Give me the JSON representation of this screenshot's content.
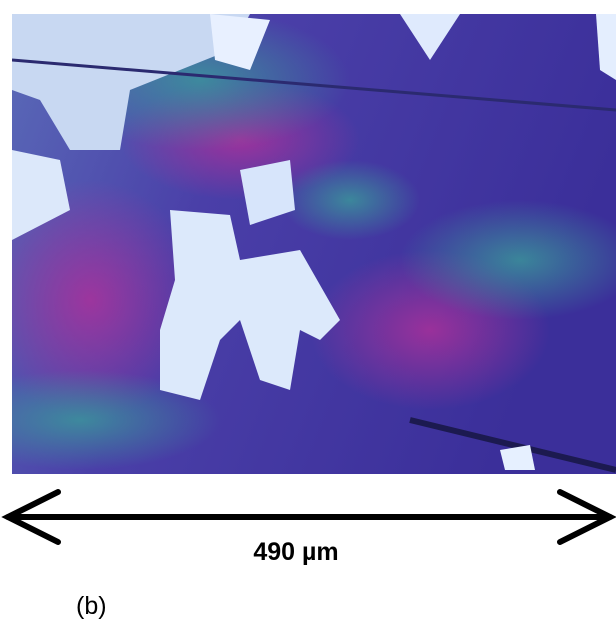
{
  "scale_bar": {
    "label": "490 µm"
  },
  "panel_label": "(b)"
}
